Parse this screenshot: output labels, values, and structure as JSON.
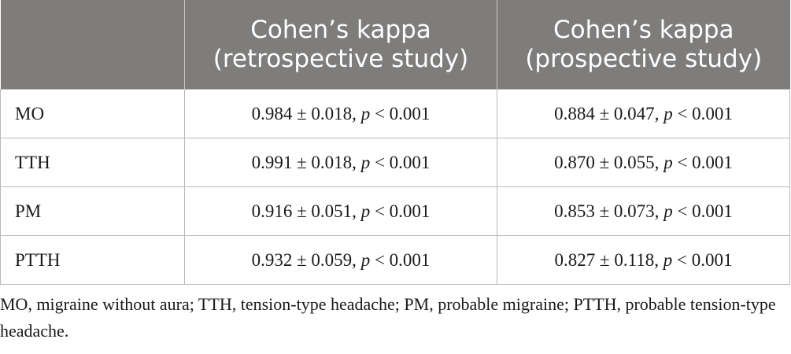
{
  "table": {
    "header": {
      "col0": "",
      "col1_line1": "Cohen’s kappa",
      "col1_line2": "(retrospective study)",
      "col2_line1": "Cohen’s kappa",
      "col2_line2": "(prospective study)"
    },
    "rows": [
      {
        "label": "MO",
        "retro": {
          "value": "0.984 ± 0.018,",
          "p_symbol": "p",
          "p_value": "< 0.001"
        },
        "prosp": {
          "value": "0.884 ± 0.047,",
          "p_symbol": "p",
          "p_value": "< 0.001"
        }
      },
      {
        "label": "TTH",
        "retro": {
          "value": "0.991 ± 0.018,",
          "p_symbol": "p",
          "p_value": "< 0.001"
        },
        "prosp": {
          "value": "0.870 ± 0.055,",
          "p_symbol": "p",
          "p_value": "< 0.001"
        }
      },
      {
        "label": "PM",
        "retro": {
          "value": "0.916 ± 0.051,",
          "p_symbol": "p",
          "p_value": "< 0.001"
        },
        "prosp": {
          "value": "0.853 ± 0.073,",
          "p_symbol": "p",
          "p_value": "< 0.001"
        }
      },
      {
        "label": "PTTH",
        "retro": {
          "value": "0.932 ± 0.059,",
          "p_symbol": "p",
          "p_value": "< 0.001"
        },
        "prosp": {
          "value": "0.827 ± 0.118,",
          "p_symbol": "p",
          "p_value": "< 0.001"
        }
      }
    ]
  },
  "footnote": "MO, migraine without aura; TTH, tension-type headache; PM, probable migraine; PTTH, probable tension-type headache.",
  "colors": {
    "header_bg": "#7e7d7b",
    "header_text": "#ffffff",
    "grid": "#b8b8b8"
  }
}
